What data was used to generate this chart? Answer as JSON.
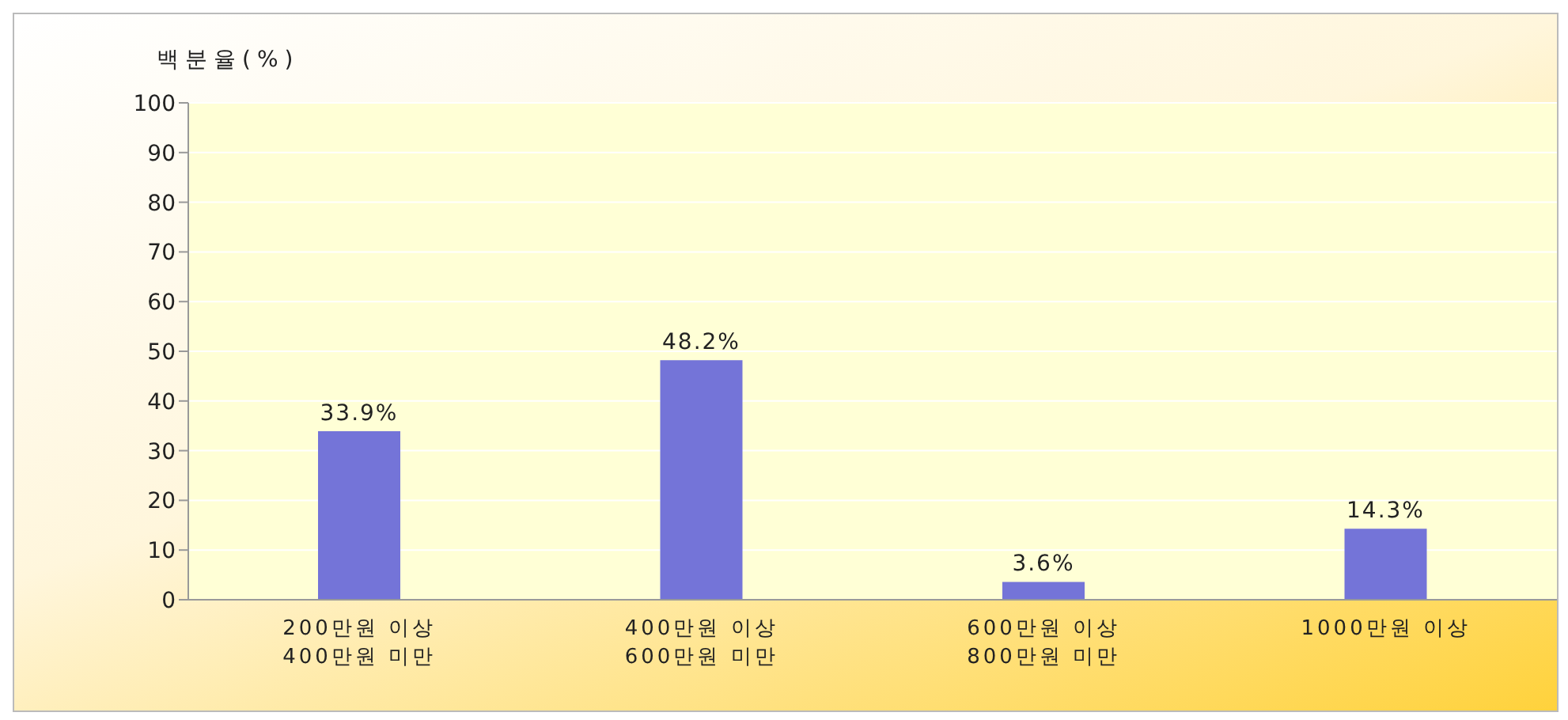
{
  "chart_data": {
    "type": "bar",
    "ylabel": "백분율(%)",
    "categories": [
      "200만원 이상\n400만원 미만",
      "400만원 이상\n600만원 미만",
      "600만원 이상\n800만원 미만",
      "1000만원 이상"
    ],
    "series": [
      {
        "color": "#7474d8",
        "values": [
          33.9,
          48.2,
          3.6,
          14.3
        ]
      }
    ],
    "value_labels": [
      "33.9%",
      "48.2%",
      "3.6%",
      "14.3%"
    ],
    "ylim": [
      0,
      100
    ],
    "yticks": [
      0,
      10,
      20,
      30,
      40,
      50,
      60,
      70,
      80,
      90,
      100
    ],
    "grid": "y"
  }
}
